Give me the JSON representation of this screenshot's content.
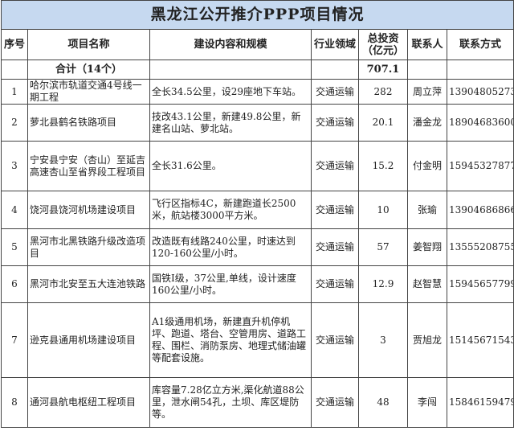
{
  "title": "黑龙江公开推介PPP项目情况",
  "headers": [
    "序号",
    "项目名称",
    "建设内容和规模",
    "行业领域",
    "总投资（亿元）",
    "联系人",
    "联系方式"
  ],
  "total": {
    "label": "合计（14个）",
    "investment": "707.1"
  },
  "rows": [
    {
      "no": "1",
      "name": "哈尔滨市轨道交通4号线一期工程",
      "content": "全长34.5公里，设29座地下车站。",
      "sector": "交通运输",
      "investment": "282",
      "contact": "周立萍",
      "phone": "13904805273"
    },
    {
      "no": "2",
      "name": "萝北县鹤名铁路项目",
      "content": "技改43.1公里，新建49.8公里，新建名山站、萝北站。",
      "sector": "交通运输",
      "investment": "20.1",
      "contact": "潘金龙",
      "phone": "18904683600"
    },
    {
      "no": "3",
      "name": "宁安县宁安（杏山）至延吉高速杏山至省界段工程项目",
      "content": "全长31.6公里。",
      "sector": "交通运输",
      "investment": "15.2",
      "contact": "付金明",
      "phone": "15945327877"
    },
    {
      "no": "4",
      "name": "饶河县饶河机场建设项目",
      "content": "飞行区指标4C，新建跑道长2500米，航站楼3000平方米。",
      "sector": "交通运输",
      "investment": "10",
      "contact": "张瑜",
      "phone": "13904686866"
    },
    {
      "no": "5",
      "name": "黑河市北黑铁路升级改造项目",
      "content": "改造既有线路240公里，时速达到120-160公里/小时。",
      "sector": "交通运输",
      "investment": "57",
      "contact": "姜智翔",
      "phone": "13555208755"
    },
    {
      "no": "6",
      "name": "黑河市北安至五大连池铁路",
      "content": "国铁I级，37公里,单线，设计速度160公里/小时。",
      "sector": "交通运输",
      "investment": "12.9",
      "contact": "赵智慧",
      "phone": "15945657799"
    },
    {
      "no": "7",
      "name": "逊克县通用机场建设项目",
      "content": "A1级通用机场，新建直升机停机坪、跑道、塔台、空管用房、道路工程、围栏、消防泵房、地理式储油罐等配套设施。",
      "sector": "交通运输",
      "investment": "3",
      "contact": "贾旭龙",
      "phone": "15145671543"
    },
    {
      "no": "8",
      "name": "通河县航电枢纽工程项目",
      "content": "库容量7.28亿立方米,渠化航道88公里，泄水闸54孔，土坝、库区堤防等。",
      "sector": "交通运输",
      "investment": "48",
      "contact": "李闯",
      "phone": "15846159479"
    }
  ]
}
